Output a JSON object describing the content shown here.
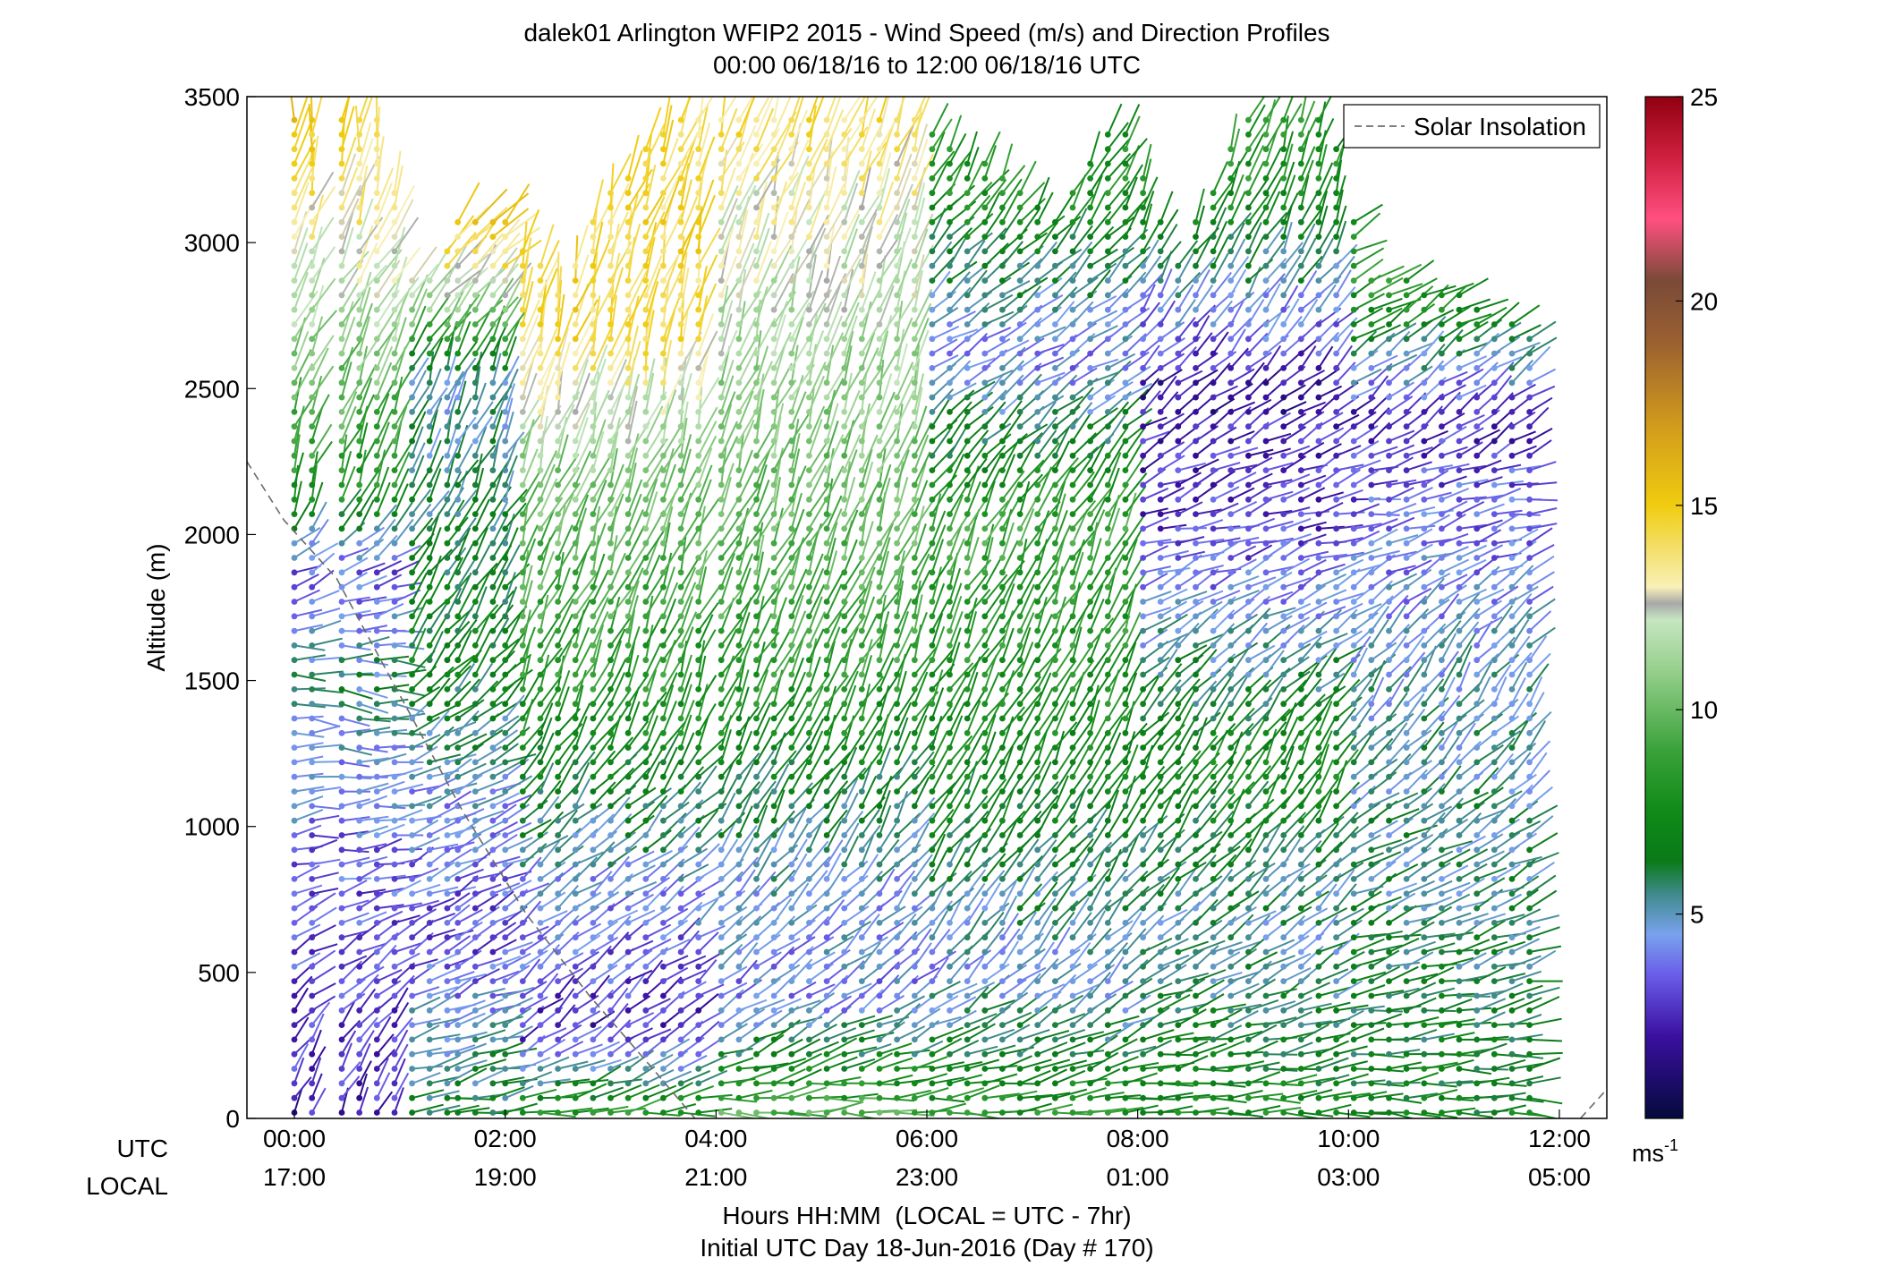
{
  "chart_data": {
    "type": "wind-profile",
    "title_line1": "dalek01 Arlington WFIP2 2015 - Wind Speed (m/s) and Direction Profiles",
    "title_line2": "00:00 06/18/16 to 12:00 06/18/16  UTC",
    "ylabel": "Altitude (m)",
    "xlabel": "Hours HH:MM  (LOCAL = UTC - 7hr)",
    "xlabel2": "Initial UTC Day 18-Jun-2016 (Day # 170)",
    "x_row_label_utc": "UTC",
    "x_row_label_local": "LOCAL",
    "xlim_hours": [
      -0.45,
      12.45
    ],
    "ylim": [
      0,
      3500
    ],
    "yticks": [
      0,
      500,
      1000,
      1500,
      2000,
      2500,
      3000,
      3500
    ],
    "xticks": [
      {
        "hour": 0,
        "utc": "00:00",
        "local": "17:00"
      },
      {
        "hour": 2,
        "utc": "02:00",
        "local": "19:00"
      },
      {
        "hour": 4,
        "utc": "04:00",
        "local": "21:00"
      },
      {
        "hour": 6,
        "utc": "06:00",
        "local": "23:00"
      },
      {
        "hour": 8,
        "utc": "08:00",
        "local": "01:00"
      },
      {
        "hour": 10,
        "utc": "10:00",
        "local": "03:00"
      },
      {
        "hour": 12,
        "utc": "12:00",
        "local": "05:00"
      }
    ],
    "legend": {
      "label": "Solar Insolation",
      "line_color": "#7f7f7f",
      "position": "top-right"
    },
    "colorbar": {
      "min": 0,
      "max": 25,
      "ticks": [
        5,
        10,
        15,
        20,
        25
      ],
      "unit_label": "ms",
      "unit_exponent": "-1",
      "stops": [
        {
          "v": 0,
          "c": "#050a3c"
        },
        {
          "v": 2,
          "c": "#3a0fa0"
        },
        {
          "v": 3.5,
          "c": "#6a5ce8"
        },
        {
          "v": 4.5,
          "c": "#79a2ee"
        },
        {
          "v": 5.5,
          "c": "#3f8a8a"
        },
        {
          "v": 6.3,
          "c": "#0a7a18"
        },
        {
          "v": 7.5,
          "c": "#108a18"
        },
        {
          "v": 9,
          "c": "#3aa23a"
        },
        {
          "v": 11,
          "c": "#98d08e"
        },
        {
          "v": 12.2,
          "c": "#c6e6c0"
        },
        {
          "v": 12.6,
          "c": "#a8a8a8"
        },
        {
          "v": 13,
          "c": "#f8f0b8"
        },
        {
          "v": 15,
          "c": "#f0cc10"
        },
        {
          "v": 17,
          "c": "#d09a1c"
        },
        {
          "v": 19,
          "c": "#9a6030"
        },
        {
          "v": 20.5,
          "c": "#7a4a38"
        },
        {
          "v": 22,
          "c": "#ff5080"
        },
        {
          "v": 23.5,
          "c": "#d02040"
        },
        {
          "v": 25,
          "c": "#900010"
        }
      ]
    },
    "solar_insolation": [
      {
        "hour": -0.45,
        "alt": 2250
      },
      {
        "hour": -0.1,
        "alt": 2050
      },
      {
        "hour": 0.4,
        "alt": 1850
      },
      {
        "hour": 1.0,
        "alt": 1450
      },
      {
        "hour": 1.6,
        "alt": 1050
      },
      {
        "hour": 2.2,
        "alt": 700
      },
      {
        "hour": 2.8,
        "alt": 420
      },
      {
        "hour": 3.4,
        "alt": 170
      },
      {
        "hour": 3.8,
        "alt": 0
      }
    ],
    "solar_insolation_dawn": [
      {
        "hour": 12.2,
        "alt": 0
      },
      {
        "hour": 12.45,
        "alt": 100
      }
    ],
    "profile_segments": [
      {
        "h0": 0.0,
        "h1": 0.3
      },
      {
        "h0": 0.45,
        "h1": 0.85
      },
      {
        "h0": 0.95,
        "h1": 1.45
      },
      {
        "h0": 1.55,
        "h1": 1.9
      },
      {
        "h0": 2.0,
        "h1": 3.95
      },
      {
        "h0": 4.05,
        "h1": 11.85
      }
    ],
    "top_height_by_hour": [
      {
        "hour": 0.0,
        "alt": 3450
      },
      {
        "hour": 0.9,
        "alt": 3450
      },
      {
        "hour": 1.0,
        "alt": 2900
      },
      {
        "hour": 1.4,
        "alt": 2900
      },
      {
        "hour": 1.5,
        "alt": 3100
      },
      {
        "hour": 2.0,
        "alt": 3100
      },
      {
        "hour": 2.5,
        "alt": 2850
      },
      {
        "hour": 3.0,
        "alt": 3200
      },
      {
        "hour": 3.6,
        "alt": 3450
      },
      {
        "hour": 4.0,
        "alt": 3450
      },
      {
        "hour": 6.0,
        "alt": 3420
      },
      {
        "hour": 7.2,
        "alt": 3100
      },
      {
        "hour": 7.8,
        "alt": 3450
      },
      {
        "hour": 8.4,
        "alt": 2950
      },
      {
        "hour": 9.0,
        "alt": 3450
      },
      {
        "hour": 9.8,
        "alt": 3450
      },
      {
        "hour": 10.2,
        "alt": 2900
      },
      {
        "hour": 11.0,
        "alt": 2850
      },
      {
        "hour": 11.85,
        "alt": 2650
      }
    ],
    "speed_regimes": [
      {
        "h0": 0.0,
        "h1": 1.0,
        "layers": [
          {
            "alt": 0,
            "speed": 2.5,
            "dir": 200
          },
          {
            "alt": 900,
            "speed": 3.5,
            "dir": 260
          },
          {
            "alt": 1500,
            "speed": 5.5,
            "dir": 275
          },
          {
            "alt": 1900,
            "speed": 3.5,
            "dir": 240
          },
          {
            "alt": 2100,
            "speed": 7.5,
            "dir": 200
          },
          {
            "alt": 2900,
            "speed": 12.5,
            "dir": 210
          },
          {
            "alt": 3400,
            "speed": 15.0,
            "dir": 185
          }
        ]
      },
      {
        "h0": 1.0,
        "h1": 2.0,
        "layers": [
          {
            "alt": 0,
            "speed": 6.5,
            "dir": 260
          },
          {
            "alt": 600,
            "speed": 3.0,
            "dir": 240
          },
          {
            "alt": 1100,
            "speed": 4.5,
            "dir": 250
          },
          {
            "alt": 1600,
            "speed": 7.0,
            "dir": 215
          },
          {
            "alt": 2500,
            "speed": 5.0,
            "dir": 200
          },
          {
            "alt": 2900,
            "speed": 13.5,
            "dir": 225
          },
          {
            "alt": 3200,
            "speed": 15.5,
            "dir": 220
          }
        ]
      },
      {
        "h0": 2.0,
        "h1": 4.0,
        "layers": [
          {
            "alt": 0,
            "speed": 8.5,
            "dir": 265
          },
          {
            "alt": 300,
            "speed": 2.5,
            "dir": 230
          },
          {
            "alt": 800,
            "speed": 4.5,
            "dir": 235
          },
          {
            "alt": 1400,
            "speed": 8.0,
            "dir": 205
          },
          {
            "alt": 2200,
            "speed": 10.5,
            "dir": 200
          },
          {
            "alt": 2700,
            "speed": 14.5,
            "dir": 195
          },
          {
            "alt": 3400,
            "speed": 14.0,
            "dir": 200
          }
        ]
      },
      {
        "h0": 4.0,
        "h1": 6.0,
        "layers": [
          {
            "alt": 0,
            "speed": 9.5,
            "dir": 268
          },
          {
            "alt": 400,
            "speed": 4.0,
            "dir": 235
          },
          {
            "alt": 900,
            "speed": 5.0,
            "dir": 215
          },
          {
            "alt": 1500,
            "speed": 8.5,
            "dir": 205
          },
          {
            "alt": 2300,
            "speed": 10.5,
            "dir": 200
          },
          {
            "alt": 3000,
            "speed": 12.5,
            "dir": 200
          },
          {
            "alt": 3400,
            "speed": 14.0,
            "dir": 200
          }
        ]
      },
      {
        "h0": 6.0,
        "h1": 8.0,
        "layers": [
          {
            "alt": 0,
            "speed": 8.0,
            "dir": 270
          },
          {
            "alt": 500,
            "speed": 4.5,
            "dir": 225
          },
          {
            "alt": 1100,
            "speed": 7.0,
            "dir": 210
          },
          {
            "alt": 2000,
            "speed": 9.0,
            "dir": 205
          },
          {
            "alt": 2600,
            "speed": 4.0,
            "dir": 240
          },
          {
            "alt": 3200,
            "speed": 8.0,
            "dir": 210
          }
        ]
      },
      {
        "h0": 8.0,
        "h1": 10.0,
        "layers": [
          {
            "alt": 0,
            "speed": 7.5,
            "dir": 270
          },
          {
            "alt": 600,
            "speed": 5.0,
            "dir": 235
          },
          {
            "alt": 1200,
            "speed": 7.5,
            "dir": 210
          },
          {
            "alt": 2000,
            "speed": 3.0,
            "dir": 255
          },
          {
            "alt": 2500,
            "speed": 2.0,
            "dir": 230
          },
          {
            "alt": 3200,
            "speed": 8.0,
            "dir": 200
          }
        ]
      },
      {
        "h0": 10.0,
        "h1": 12.0,
        "layers": [
          {
            "alt": 0,
            "speed": 7.0,
            "dir": 270
          },
          {
            "alt": 800,
            "speed": 5.5,
            "dir": 245
          },
          {
            "alt": 1500,
            "speed": 5.0,
            "dir": 215
          },
          {
            "alt": 2100,
            "speed": 3.5,
            "dir": 260
          },
          {
            "alt": 2400,
            "speed": 2.5,
            "dir": 230
          },
          {
            "alt": 2800,
            "speed": 8.0,
            "dir": 240
          }
        ]
      }
    ],
    "profile_interval_minutes": 10,
    "range_gate_m": 50,
    "first_gate_m": 20
  }
}
